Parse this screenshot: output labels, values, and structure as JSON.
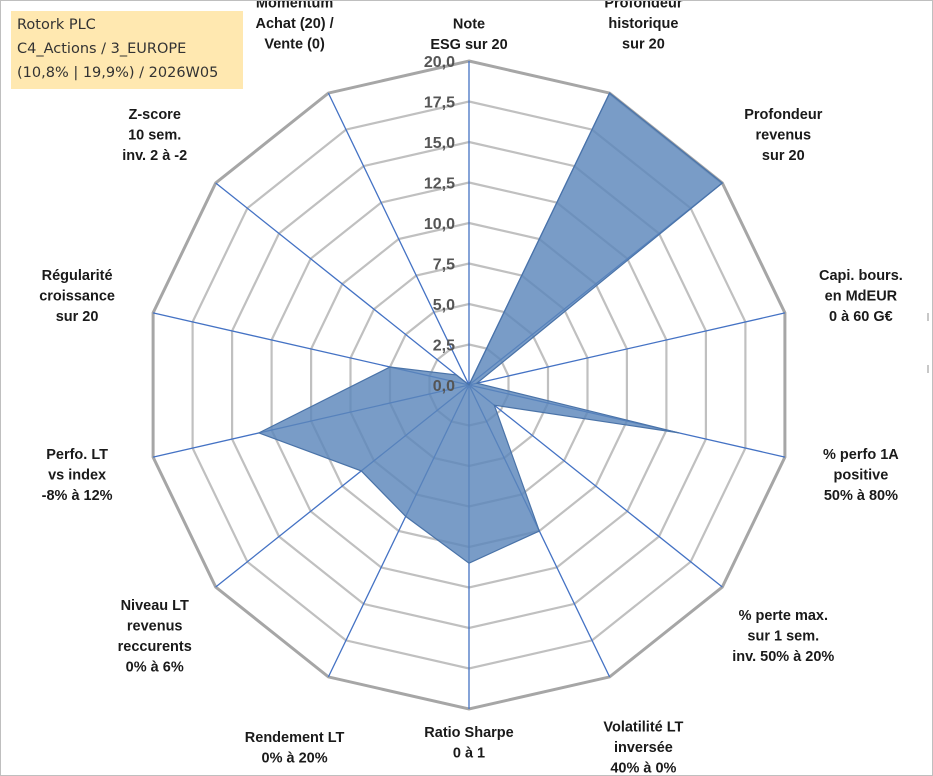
{
  "info_box": {
    "line1": "Rotork PLC",
    "line2": "C4_Actions / 3_EUROPE",
    "line3": "(10,8% | 19,9%) / 2026W05"
  },
  "colors": {
    "fill": "#5b86bb",
    "stroke": "#4a73a8",
    "axis": "#4472c4",
    "grid": "#c0c0c0",
    "outer_ring": "#a6a6a6",
    "info_bg": "#ffe8b0"
  },
  "chart_data": {
    "type": "radar",
    "title": "",
    "rlim": [
      0,
      20
    ],
    "grid": true,
    "ticks": [
      "0,0",
      "2,5",
      "5,0",
      "7,5",
      "10,0",
      "12,5",
      "15,0",
      "17,5",
      "20,0"
    ],
    "axes": [
      {
        "label": [
          "Note",
          "ESG sur 20"
        ],
        "value": 0.0
      },
      {
        "label": [
          "Profondeur",
          "historique",
          "sur 20"
        ],
        "value": 20.0
      },
      {
        "label": [
          "Profondeur",
          "revenus",
          "sur 20"
        ],
        "value": 20.0
      },
      {
        "label": [
          "Capi. bours.",
          "en MdEUR",
          "0 à 60 G€"
        ],
        "value": 0.5
      },
      {
        "label": [
          "% perfo 1A",
          "positive",
          "50% à 80%"
        ],
        "value": 13.3
      },
      {
        "label": [
          "% perte max.",
          "sur 1 sem.",
          "inv. 50% à 20%"
        ],
        "value": 2.0
      },
      {
        "label": [
          "Volatilité LT",
          "inversée",
          "40% à 0%"
        ],
        "value": 10.0
      },
      {
        "label": [
          "Ratio Sharpe",
          "0 à 1"
        ],
        "value": 11.0
      },
      {
        "label": [
          "Rendement LT",
          "0% à 20%"
        ],
        "value": 9.0
      },
      {
        "label": [
          "Niveau LT",
          "revenus",
          "reccurents",
          "0% à 6%"
        ],
        "value": 8.5
      },
      {
        "label": [
          "Perfo. LT",
          "vs index",
          "-8% à 12%"
        ],
        "value": 13.3
      },
      {
        "label": [
          "Régularité",
          "croissance",
          "sur 20"
        ],
        "value": 5.0
      },
      {
        "label": [
          "Z-score",
          "10 sem.",
          "inv. 2 à -2"
        ],
        "value": 1.0
      },
      {
        "label": [
          "Momentum",
          "Achat (20) /",
          "Vente (0)"
        ],
        "value": 0.0
      }
    ]
  }
}
